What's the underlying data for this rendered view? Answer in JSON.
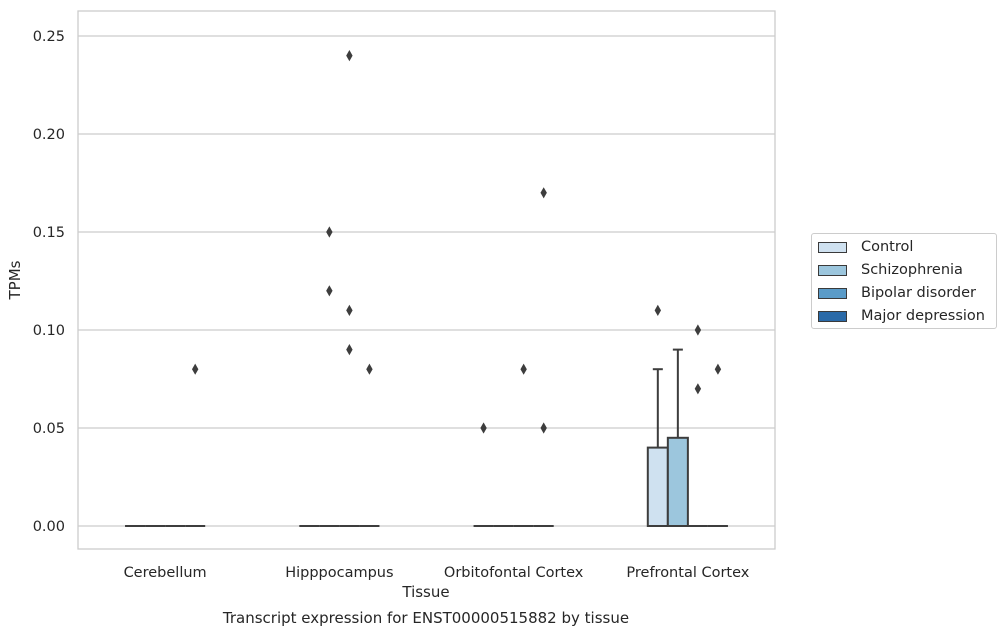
{
  "chart_data": {
    "type": "box",
    "title": "Transcript expression for ENST00000515882 by tissue",
    "xlabel": "Tissue",
    "ylabel": "TPMs",
    "ylim": [
      -0.0115,
      0.252
    ],
    "yticks": [
      "0.00",
      "0.05",
      "0.10",
      "0.15",
      "0.20",
      "0.25"
    ],
    "ytick_values": [
      0,
      0.05,
      0.1,
      0.15,
      0.2,
      0.25
    ],
    "categories": [
      "Cerebellum",
      "Hipppocampus",
      "Orbitofontal Cortex",
      "Prefrontal Cortex"
    ],
    "grid": true,
    "legend_position": "right",
    "series": [
      {
        "name": "Control",
        "color": "#cfe1f0",
        "boxes": [
          {
            "q1": 0,
            "median": 0,
            "q3": 0,
            "whisker_low": 0,
            "whisker_high": 0,
            "outliers": []
          },
          {
            "q1": 0,
            "median": 0,
            "q3": 0,
            "whisker_low": 0,
            "whisker_high": 0,
            "outliers": []
          },
          {
            "q1": 0,
            "median": 0,
            "q3": 0,
            "whisker_low": 0,
            "whisker_high": 0,
            "outliers": [
              0.05
            ]
          },
          {
            "q1": 0,
            "median": 0,
            "q3": 0.04,
            "whisker_low": 0,
            "whisker_high": 0.08,
            "outliers": [
              0.11
            ]
          }
        ]
      },
      {
        "name": "Schizophrenia",
        "color": "#9cc6dd",
        "boxes": [
          {
            "q1": 0,
            "median": 0,
            "q3": 0,
            "whisker_low": 0,
            "whisker_high": 0,
            "outliers": []
          },
          {
            "q1": 0,
            "median": 0,
            "q3": 0,
            "whisker_low": 0,
            "whisker_high": 0,
            "outliers": [
              0.15,
              0.12
            ]
          },
          {
            "q1": 0,
            "median": 0,
            "q3": 0,
            "whisker_low": 0,
            "whisker_high": 0,
            "outliers": []
          },
          {
            "q1": 0,
            "median": 0,
            "q3": 0.045,
            "whisker_low": 0,
            "whisker_high": 0.09,
            "outliers": []
          }
        ]
      },
      {
        "name": "Bipolar disorder",
        "color": "#5a9bc8",
        "boxes": [
          {
            "q1": 0,
            "median": 0,
            "q3": 0,
            "whisker_low": 0,
            "whisker_high": 0,
            "outliers": []
          },
          {
            "q1": 0,
            "median": 0,
            "q3": 0,
            "whisker_low": 0,
            "whisker_high": 0,
            "outliers": [
              0.24,
              0.11,
              0.09
            ]
          },
          {
            "q1": 0,
            "median": 0,
            "q3": 0,
            "whisker_low": 0,
            "whisker_high": 0,
            "outliers": [
              0.08
            ]
          },
          {
            "q1": 0,
            "median": 0,
            "q3": 0,
            "whisker_low": 0,
            "whisker_high": 0,
            "outliers": [
              0.1,
              0.07
            ]
          }
        ]
      },
      {
        "name": "Major depression",
        "color": "#2a6aa8",
        "boxes": [
          {
            "q1": 0,
            "median": 0,
            "q3": 0,
            "whisker_low": 0,
            "whisker_high": 0,
            "outliers": [
              0.08
            ]
          },
          {
            "q1": 0,
            "median": 0,
            "q3": 0,
            "whisker_low": 0,
            "whisker_high": 0,
            "outliers": [
              0.08
            ]
          },
          {
            "q1": 0,
            "median": 0,
            "q3": 0,
            "whisker_low": 0,
            "whisker_high": 0,
            "outliers": [
              0.17,
              0.05
            ]
          },
          {
            "q1": 0,
            "median": 0,
            "q3": 0,
            "whisker_low": 0,
            "whisker_high": 0,
            "outliers": [
              0.08
            ]
          }
        ]
      }
    ]
  }
}
